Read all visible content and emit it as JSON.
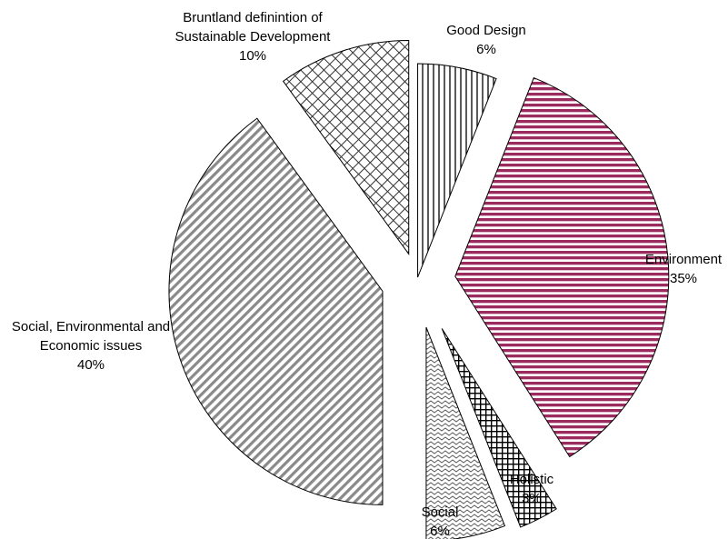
{
  "chart_data": {
    "type": "pie",
    "exploded": true,
    "legend": "none",
    "slices": [
      {
        "name": "Good Design",
        "label_lines": [
          "Good Design"
        ],
        "value": 6,
        "value_label": "6%",
        "pattern": "vertical-lines"
      },
      {
        "name": "Environment",
        "label_lines": [
          "Environment"
        ],
        "value": 35,
        "value_label": "35%",
        "pattern": "horizontal-lines-magenta"
      },
      {
        "name": "Holistic",
        "label_lines": [
          "Holistic"
        ],
        "value": 3,
        "value_label": "3%",
        "pattern": "grid"
      },
      {
        "name": "Social",
        "label_lines": [
          "Social"
        ],
        "value": 6,
        "value_label": "6%",
        "pattern": "wave"
      },
      {
        "name": "Social, Environmental and Economic issues",
        "label_lines": [
          "Social, Environmental and",
          "Economic issues"
        ],
        "value": 40,
        "value_label": "40%",
        "pattern": "diagonal-stripes"
      },
      {
        "name": "Bruntland definintion of Sustainable Development",
        "label_lines": [
          "Bruntland definintion of",
          "Sustainable Development"
        ],
        "value": 10,
        "value_label": "10%",
        "pattern": "crosshatch"
      }
    ],
    "colors": {
      "magenta": "#9b2a5e",
      "outline": "#000000",
      "stripe_gray": "#808080"
    }
  }
}
